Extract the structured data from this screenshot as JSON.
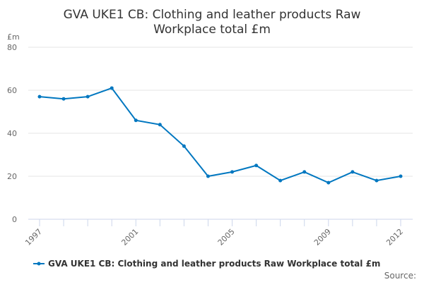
{
  "chart_data": {
    "type": "line",
    "title_lines": [
      "GVA UKE1 CB: Clothing and leather products Raw",
      "Workplace total £m"
    ],
    "ylabel": "£m",
    "ylim": [
      0,
      80
    ],
    "yticks": [
      "0",
      "20",
      "40",
      "60",
      "80"
    ],
    "x": [
      1997,
      1998,
      1999,
      2000,
      2001,
      2002,
      2003,
      2004,
      2005,
      2006,
      2007,
      2008,
      2009,
      2010,
      2011,
      2012
    ],
    "xtick_labels": [
      "1997",
      "2001",
      "2005",
      "2009",
      "2012"
    ],
    "series": [
      {
        "name": "GVA UKE1 CB: Clothing and leather products Raw Workplace total £m",
        "values": [
          57,
          56,
          57,
          61,
          46,
          44,
          34,
          20,
          22,
          25,
          18,
          22,
          17,
          22,
          18,
          20
        ],
        "color": "#0077c0"
      }
    ],
    "grid": true,
    "legend": "bottom"
  },
  "source_label": "Source:"
}
